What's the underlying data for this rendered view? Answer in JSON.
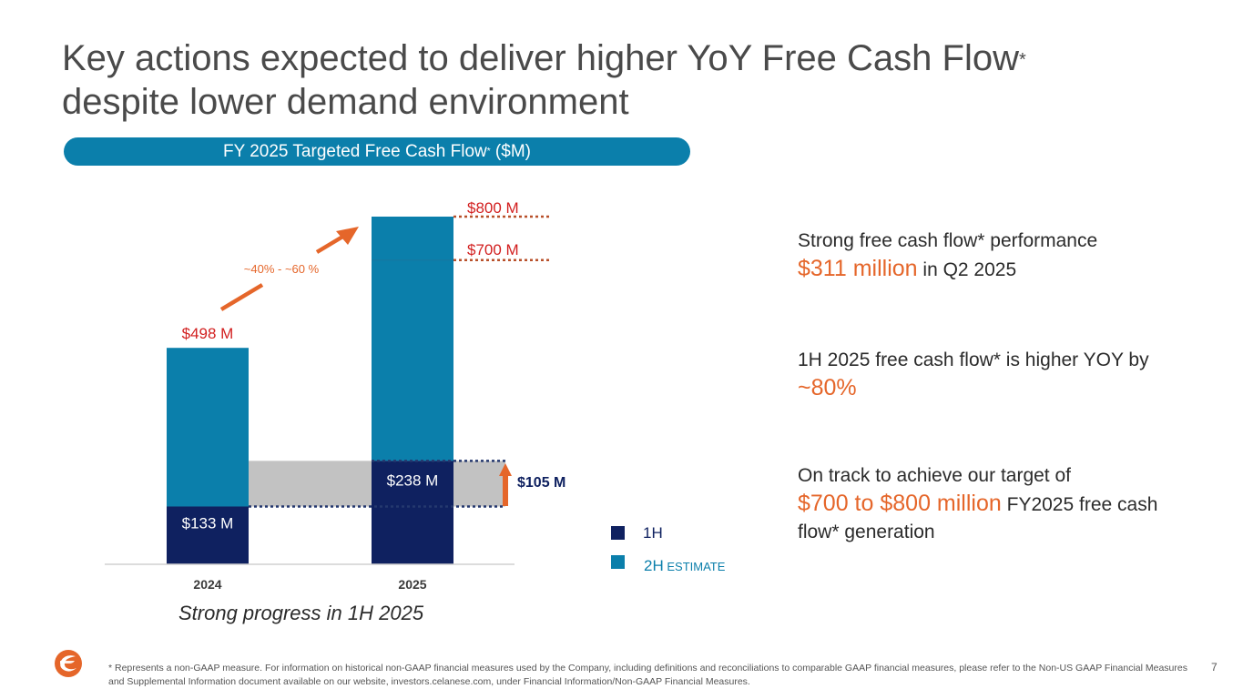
{
  "page": {
    "title_text": "Key actions expected to deliver higher YoY Free Cash Flow",
    "title_mark": "*",
    "title_line2": "despite lower demand environment",
    "pill_text": "FY 2025 Targeted Free Cash Flow",
    "pill_mark": "*",
    "pill_unit": " ($M)",
    "progress_caption": "Strong progress in 1H 2025",
    "page_number": "7",
    "footnote": "* Represents a non-GAAP measure. For information on historical non-GAAP financial measures used by the Company, including definitions and reconciliations to comparable GAAP financial measures, please refer to the Non-US GAAP Financial Measures and Supplemental Information document available on our website, investors.celanese.com, under Financial Information/Non-GAAP Financial Measures."
  },
  "highlights": [
    {
      "lead": "Strong free cash flow* performance",
      "accent": "$311 million",
      "tail": " in Q2 2025"
    },
    {
      "lead": "1H 2025 free cash flow* is higher YOY by ",
      "accent": "~80%",
      "tail": ""
    },
    {
      "lead": "On track to achieve our target of",
      "accent": "$700 to $800 million",
      "tail": " FY2025 free cash flow* generation"
    }
  ],
  "colors": {
    "first_half": "#0f2160",
    "second_half": "#0b7fab",
    "accent_orange": "#e5662a",
    "label_red": "#d21f1f",
    "band_gray": "#c2c2c2",
    "dotted": "#24386e"
  },
  "chart_data": {
    "type": "bar",
    "stacked": true,
    "title": "FY 2025 Targeted Free Cash Flow* ($M)",
    "categories": [
      "2024",
      "2025"
    ],
    "series": [
      {
        "name": "1H",
        "values": [
          133,
          238
        ]
      },
      {
        "name": "2H ESTIMATE",
        "values": [
          365,
          562
        ]
      }
    ],
    "segment_labels": [
      "$133 M",
      "$238 M"
    ],
    "total_labels": {
      "2024": "$498 M"
    },
    "target_range": [
      700,
      800
    ],
    "target_labels": [
      "$700 M",
      "$800 M"
    ],
    "growth_label": "~40% - ~60 %",
    "increase_label": "$105 M",
    "legend": [
      {
        "name": "1H",
        "prefix": "1H",
        "suffix": ""
      },
      {
        "name": "2H ESTIMATE",
        "prefix": "2H",
        "suffix": " ESTIMATE"
      }
    ],
    "ylim": [
      0,
      800
    ],
    "legend_position": "bottom-right"
  }
}
